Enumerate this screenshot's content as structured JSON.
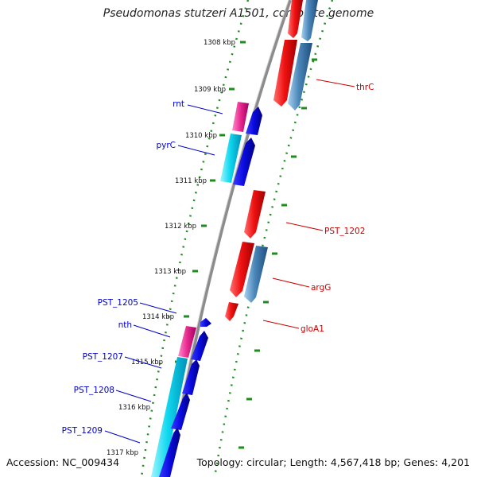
{
  "title": "Pseudomonas stutzeri A1501, complete genome",
  "footer": {
    "accession": "Accession: NC_009434",
    "topology": "Topology: circular; Length: 4,567,418 bp; Genes: 4,201"
  },
  "colors": {
    "backbone": "#8c8c8c",
    "ticks": "#1e8c1e",
    "blue_gene": "#0a0ae0",
    "cyan_gene": "#10d8ef",
    "pink_gene": "#e8288e",
    "red_gene": "#f01212",
    "steel_gene": "#4a86b8",
    "left_label": "#0000cc",
    "right_label": "#cc0000"
  },
  "ticks": [
    "1308 kbp",
    "1309 kbp",
    "1310 kbp",
    "1311 kbp",
    "1312 kbp",
    "1313 kbp",
    "1314 kbp",
    "1315 kbp",
    "1316 kbp",
    "1317 kbp"
  ],
  "labels_left": [
    "rnt",
    "pyrC",
    "PST_1205",
    "nth",
    "PST_1207",
    "PST_1208",
    "PST_1209"
  ],
  "labels_right": [
    "thrC",
    "PST_1202",
    "argG",
    "gloA1"
  ]
}
